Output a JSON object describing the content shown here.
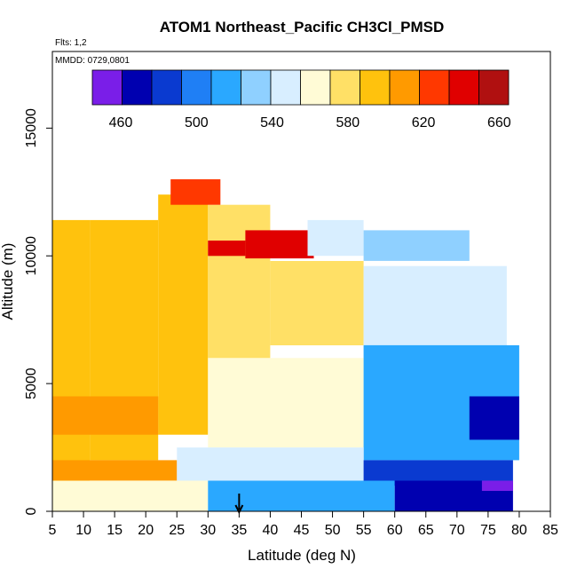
{
  "chart_data": {
    "type": "heatmap",
    "title": "ATOM1 Northeast_Pacific CH3Cl_PMSD",
    "flights_label": "Flts: 1,2",
    "mmdd_label": "MMDD: 0729,0801",
    "xlabel": "Latitude (deg N)",
    "ylabel": "Altitude (m)",
    "xlim": [
      5,
      85
    ],
    "ylim": [
      0,
      18000
    ],
    "x_ticks": [
      "5",
      "10",
      "15",
      "20",
      "25",
      "30",
      "35",
      "40",
      "45",
      "50",
      "55",
      "60",
      "65",
      "70",
      "75",
      "80",
      "85"
    ],
    "y_ticks": [
      "0",
      "5000",
      "10000",
      "15000"
    ],
    "colorbar": {
      "range": [
        445,
        665
      ],
      "tick_labels": [
        "460",
        "500",
        "540",
        "580",
        "620",
        "660"
      ],
      "tick_values": [
        460,
        500,
        540,
        580,
        620,
        660
      ],
      "colors": [
        "#7a1ee8",
        "#0000b0",
        "#0a3ad0",
        "#1f7ff5",
        "#2aa8ff",
        "#8fd0ff",
        "#d8eeff",
        "#fffbd6",
        "#ffe066",
        "#ffc20d",
        "#ff9a00",
        "#ff3800",
        "#e00000",
        "#b01010"
      ]
    },
    "marker": {
      "latitude": 35,
      "label": "arrow"
    },
    "grid": false,
    "regions": [
      {
        "lat": [
          5,
          11
        ],
        "alt": [
          200,
          11400
        ],
        "value": 598
      },
      {
        "lat": [
          11,
          22
        ],
        "alt": [
          2000,
          11400
        ],
        "value": 600
      },
      {
        "lat": [
          22,
          30
        ],
        "alt": [
          3000,
          12400
        ],
        "value": 588
      },
      {
        "lat": [
          30,
          40
        ],
        "alt": [
          6000,
          12000
        ],
        "value": 580
      },
      {
        "lat": [
          40,
          55
        ],
        "alt": [
          6500,
          9800
        ],
        "value": 575
      },
      {
        "lat": [
          55,
          78
        ],
        "alt": [
          6000,
          9600
        ],
        "value": 545
      },
      {
        "lat": [
          30,
          55
        ],
        "alt": [
          2500,
          6000
        ],
        "value": 555
      },
      {
        "lat": [
          55,
          80
        ],
        "alt": [
          2000,
          6500
        ],
        "value": 520
      },
      {
        "lat": [
          5,
          25
        ],
        "alt": [
          1200,
          2000
        ],
        "value": 605
      },
      {
        "lat": [
          25,
          55
        ],
        "alt": [
          1200,
          2500
        ],
        "value": 545
      },
      {
        "lat": [
          55,
          79
        ],
        "alt": [
          1000,
          2000
        ],
        "value": 478
      },
      {
        "lat": [
          5,
          30
        ],
        "alt": [
          0,
          1200
        ],
        "value": 570
      },
      {
        "lat": [
          30,
          60
        ],
        "alt": [
          0,
          1200
        ],
        "value": 520
      },
      {
        "lat": [
          60,
          79
        ],
        "alt": [
          0,
          1200
        ],
        "value": 470
      },
      {
        "lat": [
          24,
          32
        ],
        "alt": [
          12000,
          13000
        ],
        "value": 625
      },
      {
        "lat": [
          36,
          47
        ],
        "alt": [
          9900,
          11000
        ],
        "value": 635
      },
      {
        "lat": [
          30,
          36
        ],
        "alt": [
          10000,
          10600
        ],
        "value": 640
      },
      {
        "lat": [
          46,
          55
        ],
        "alt": [
          10000,
          11400
        ],
        "value": 545
      },
      {
        "lat": [
          55,
          72
        ],
        "alt": [
          9800,
          11000
        ],
        "value": 530
      },
      {
        "lat": [
          72,
          80
        ],
        "alt": [
          2800,
          4500
        ],
        "value": 470
      },
      {
        "lat": [
          74,
          79
        ],
        "alt": [
          800,
          1200
        ],
        "value": 452
      },
      {
        "lat": [
          5,
          22
        ],
        "alt": [
          3000,
          4500
        ],
        "value": 615
      }
    ]
  }
}
